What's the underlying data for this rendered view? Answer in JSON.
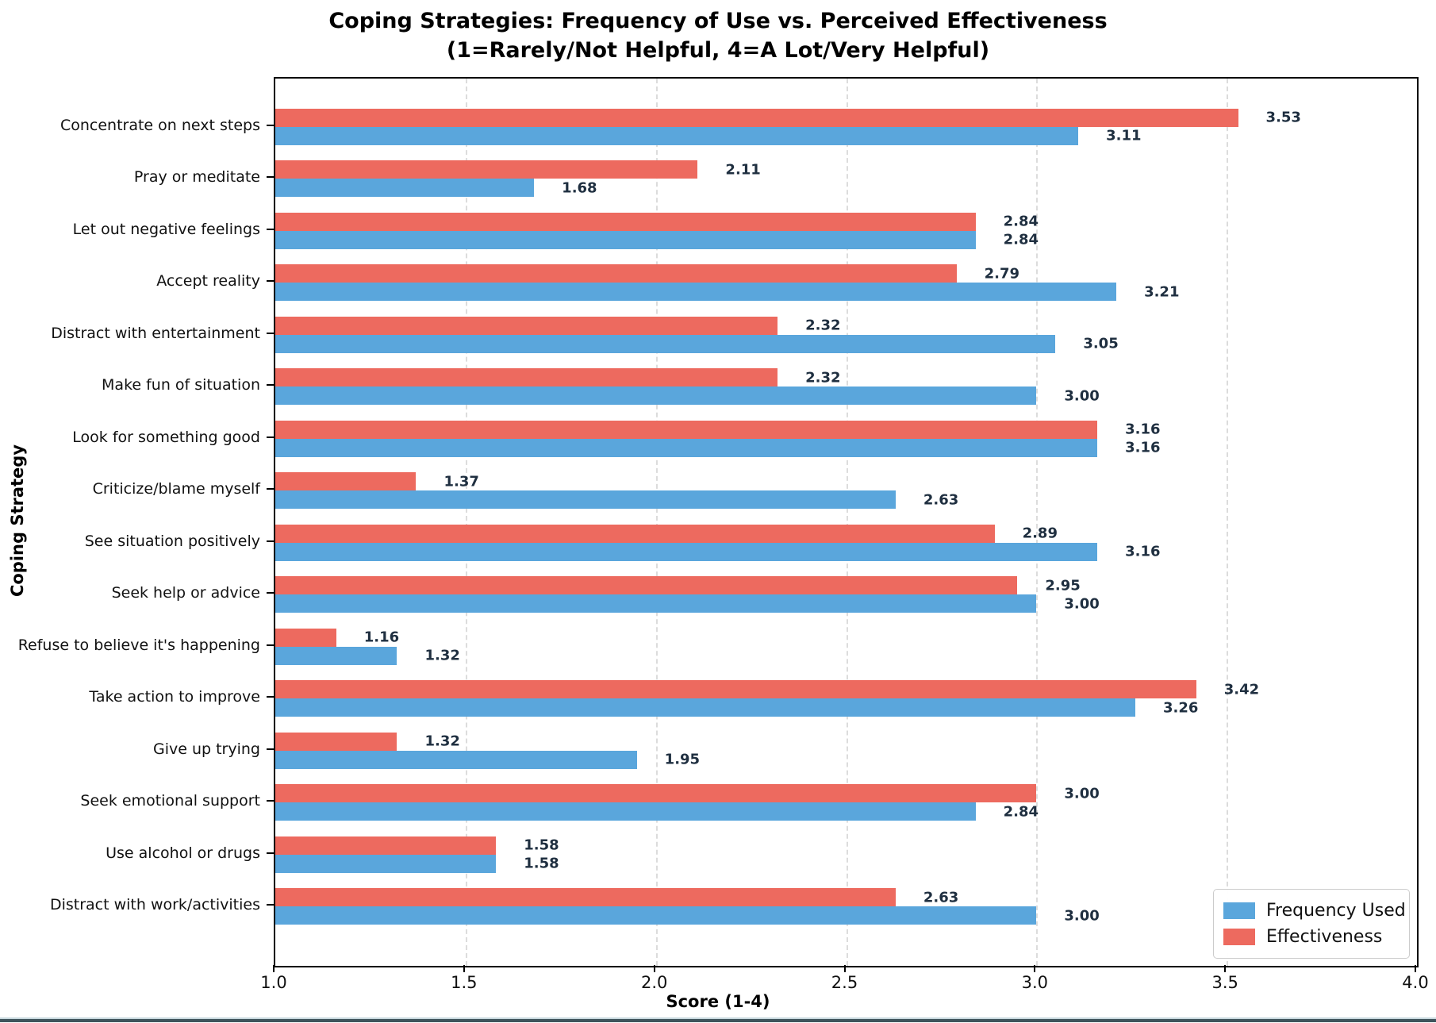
{
  "title": {
    "line1": "Coping Strategies: Frequency of Use vs. Perceived Effectiveness",
    "line2": "(1=Rarely/Not Helpful, 4=A Lot/Very Helpful)"
  },
  "colors": {
    "frequency": "#5AA6DC",
    "effectiveness": "#ED6A5F",
    "value_label": "#1F2F40",
    "grid": "#DCDCDC",
    "spine": "#000000",
    "bottom_strip": "#3F545C"
  },
  "chart_data": {
    "type": "bar",
    "orientation": "horizontal",
    "title": "Coping Strategies: Frequency of Use vs. Perceived Effectiveness",
    "subtitle": "(1=Rarely/Not Helpful, 4=A Lot/Very Helpful)",
    "xlabel": "Score (1-4)",
    "ylabel": "Coping Strategy",
    "xlim": [
      1.0,
      4.0
    ],
    "xticks": [
      1.0,
      1.5,
      2.0,
      2.5,
      3.0,
      3.5,
      4.0
    ],
    "grid": "vertical-dashed",
    "legend_position": "lower right",
    "value_label_format": "2-decimals",
    "categories": [
      "Concentrate on next steps",
      "Pray or meditate",
      "Let out negative feelings",
      "Accept reality",
      "Distract with entertainment",
      "Make fun of situation",
      "Look for something good",
      "Criticize/blame myself",
      "See situation positively",
      "Seek help or advice",
      "Refuse to believe it's happening",
      "Take action to improve",
      "Give up trying",
      "Seek emotional support",
      "Use alcohol or drugs",
      "Distract with work/activities"
    ],
    "series": [
      {
        "name": "Frequency Used",
        "color": "#5AA6DC",
        "values": [
          3.11,
          1.68,
          2.84,
          3.21,
          3.05,
          3.0,
          3.16,
          2.63,
          3.16,
          3.0,
          1.32,
          3.26,
          1.95,
          2.84,
          1.58,
          3.0
        ]
      },
      {
        "name": "Effectiveness",
        "color": "#ED6A5F",
        "values": [
          3.53,
          2.11,
          2.84,
          2.79,
          2.32,
          2.32,
          3.16,
          1.37,
          2.89,
          2.95,
          1.16,
          3.42,
          1.32,
          3.0,
          1.58,
          2.63
        ]
      }
    ]
  },
  "legend": {
    "items": [
      {
        "label": "Frequency Used",
        "color": "#5AA6DC"
      },
      {
        "label": "Effectiveness",
        "color": "#ED6A5F"
      }
    ]
  }
}
